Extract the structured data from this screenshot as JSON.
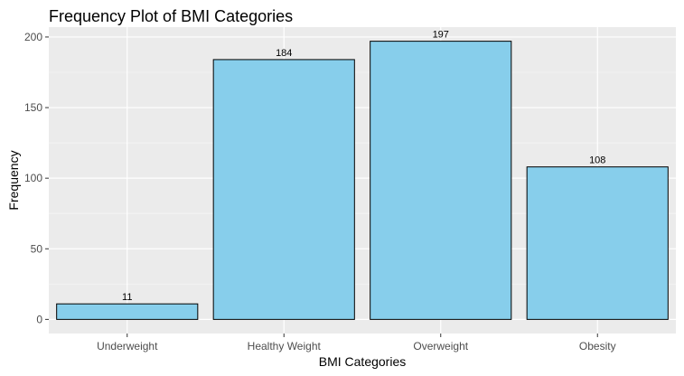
{
  "chart_data": {
    "type": "bar",
    "title": "Frequency Plot of BMI Categories",
    "xlabel": "BMI Categories",
    "ylabel": "Frequency",
    "categories": [
      "Underweight",
      "Healthy Weight",
      "Overweight",
      "Obesity"
    ],
    "values": [
      11,
      184,
      197,
      108
    ],
    "data_labels": [
      "11",
      "184",
      "197",
      "108"
    ],
    "ylim": [
      -10,
      207
    ],
    "yticks": [
      0,
      50,
      100,
      150,
      200
    ],
    "ytick_labels": [
      "0",
      "50",
      "100",
      "150",
      "200"
    ],
    "grid": true,
    "legend": "none",
    "colors": {
      "bar_fill": "#87ceeb",
      "bar_stroke": "#000000",
      "panel_background": "#ebebeb",
      "grid_major": "#ffffff",
      "grid_minor": "#f5f5f5",
      "tick_label": "#4d4d4d"
    }
  }
}
